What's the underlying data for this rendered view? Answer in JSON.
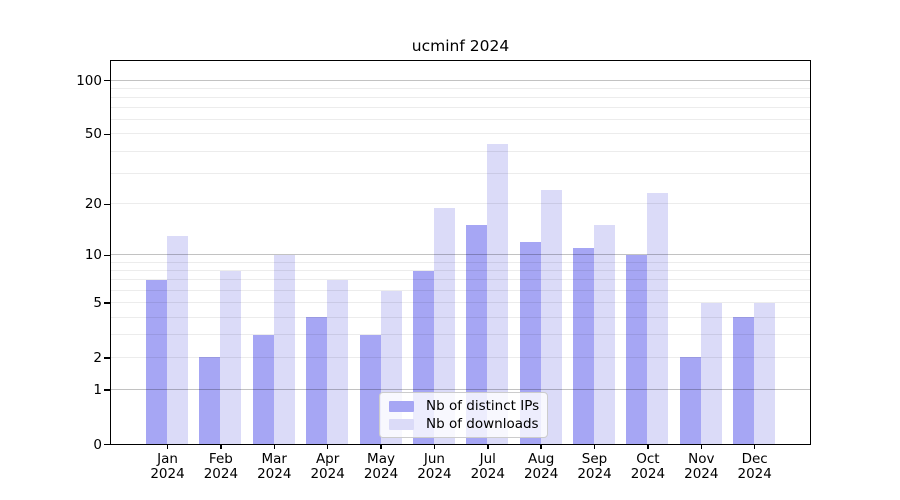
{
  "chart_data": {
    "type": "bar",
    "title": "ucminf 2024",
    "categories": [
      "Jan",
      "Feb",
      "Mar",
      "Apr",
      "May",
      "Jun",
      "Jul",
      "Aug",
      "Sep",
      "Oct",
      "Nov",
      "Dec"
    ],
    "x_axis": {
      "label_line2": "2024"
    },
    "series": [
      {
        "name": "Nb of distinct IPs",
        "key": "distinct-ips",
        "color": "#a6a6f4",
        "values": [
          7,
          2,
          3,
          4,
          3,
          8,
          15,
          12,
          11,
          10,
          2,
          4
        ]
      },
      {
        "name": "Nb of downloads",
        "key": "downloads",
        "color": "#dbdbf8",
        "values": [
          13,
          8,
          10,
          7,
          6,
          19,
          44,
          24,
          15,
          23,
          5,
          5
        ]
      }
    ],
    "y_axis": {
      "scale": "log10(1+x)",
      "tick_values": [
        0,
        1,
        2,
        5,
        10,
        20,
        50,
        100
      ],
      "tick_labels": [
        "0",
        "1",
        "2",
        "5",
        "10",
        "20",
        "50",
        "100"
      ],
      "major_gridlines": [
        1,
        10,
        100
      ],
      "minor_gridlines": [
        2,
        3,
        4,
        5,
        6,
        7,
        8,
        9,
        20,
        30,
        40,
        50,
        60,
        70,
        80,
        90
      ],
      "top_value": 128
    },
    "legend": {
      "location": "lower-center-inside",
      "entries": [
        "Nb of distinct IPs",
        "Nb of downloads"
      ]
    },
    "grid": true
  },
  "colors": {
    "background": "#ffffff",
    "bar_distinct_ips": "#a6a6f4",
    "bar_downloads": "#dbdbf8",
    "grid_minor": "rgba(0,0,0,0.075)",
    "grid_major": "rgba(0,0,0,0.24)",
    "axis": "#000000",
    "legend_bg": "rgba(255,255,255,0.8)",
    "legend_border": "#cccccc",
    "text": "#000000"
  }
}
